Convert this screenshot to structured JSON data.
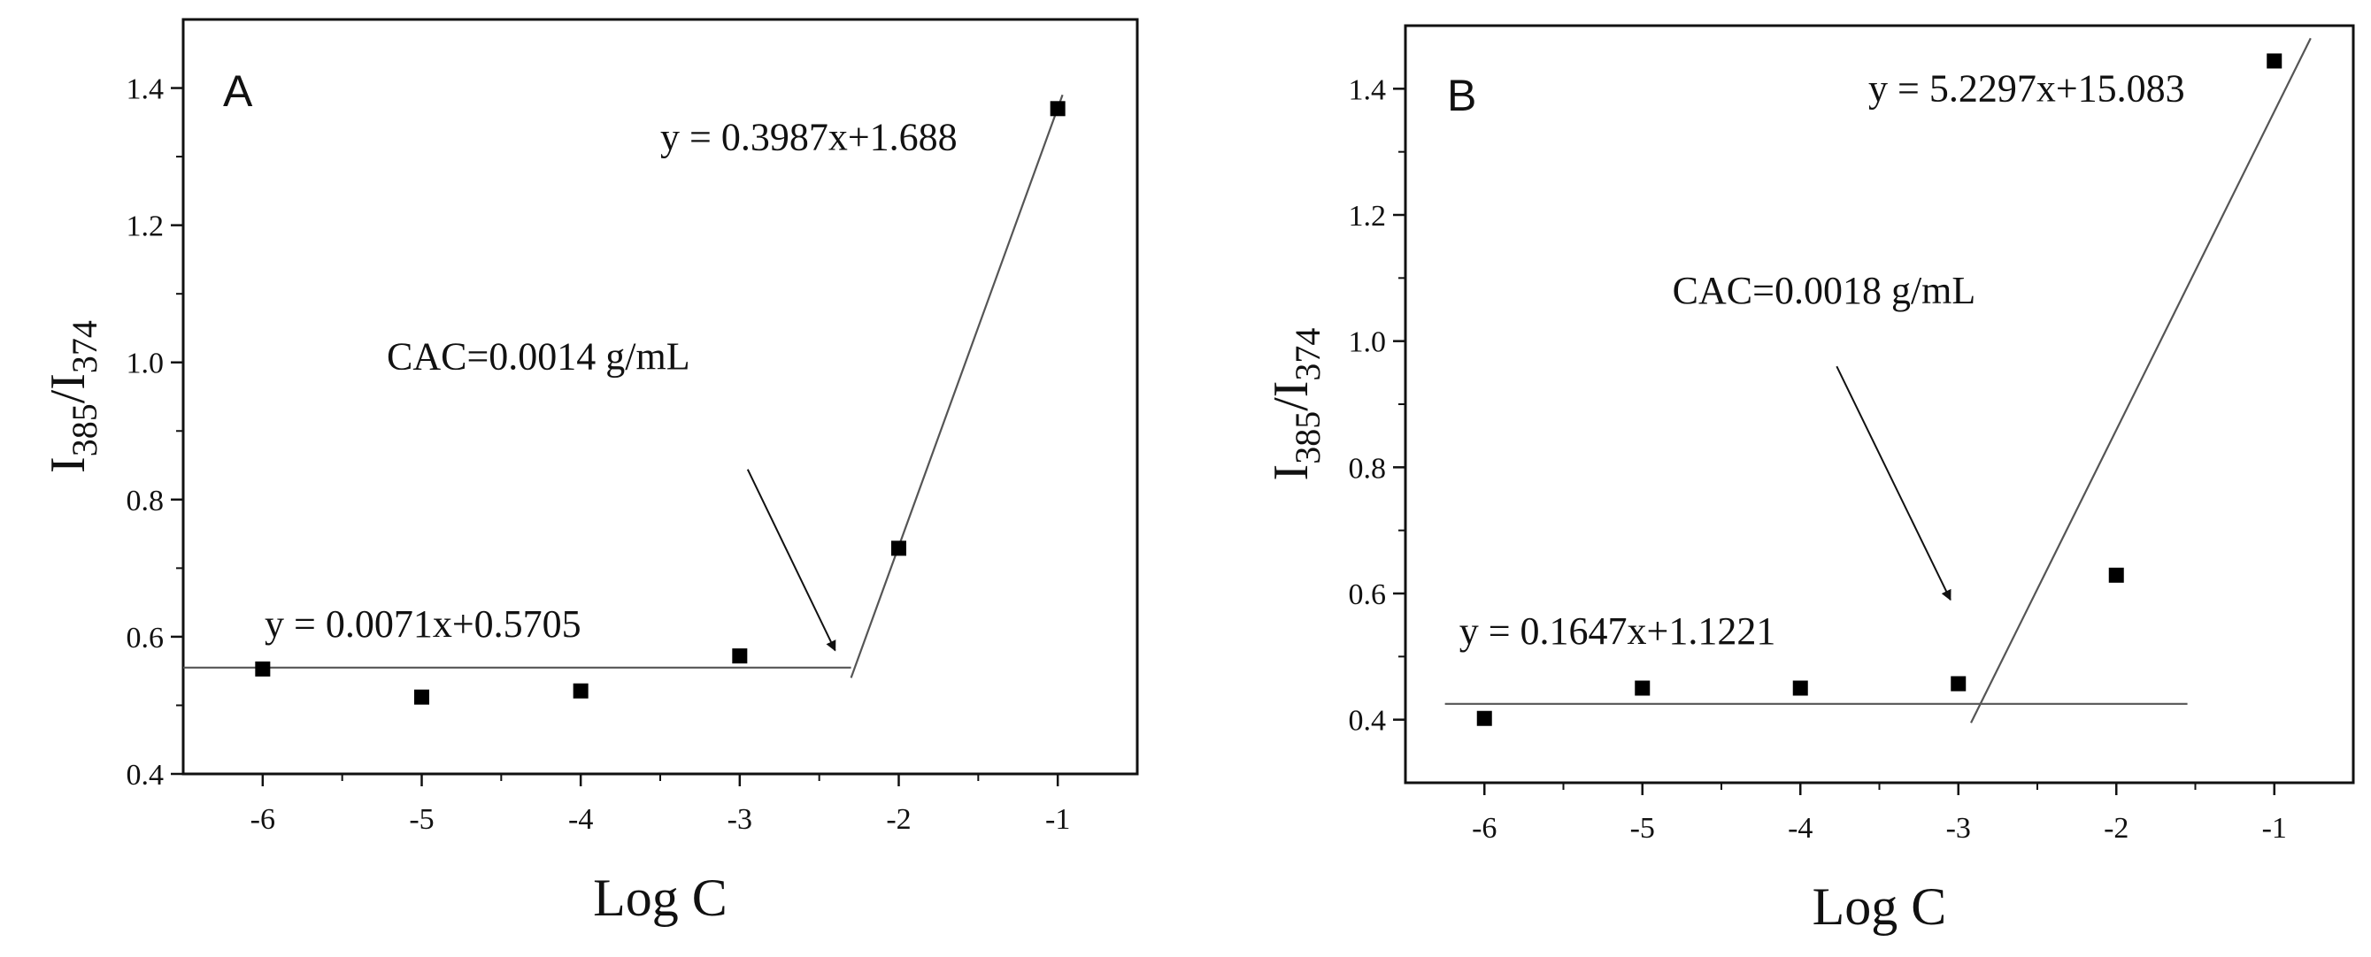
{
  "chart_data": [
    {
      "type": "scatter",
      "panel_label": "A",
      "xlabel": "Log C",
      "ylabel_base": "I",
      "ylabel_sub1": "385",
      "ylabel_slash": "/I",
      "ylabel_sub2": "374",
      "xlim": [
        -6.5,
        -0.5
      ],
      "ylim": [
        0.4,
        1.5
      ],
      "x_ticks": [
        -6,
        -5,
        -4,
        -3,
        -2,
        -1
      ],
      "x_tick_labels": [
        "-6",
        "-5",
        "-4",
        "-3",
        "-2",
        "-1"
      ],
      "y_ticks": [
        0.4,
        0.6,
        0.8,
        1.0,
        1.2,
        1.4
      ],
      "y_tick_labels": [
        "0.4",
        "0.6",
        "0.8",
        "1.0",
        "1.2",
        "1.4"
      ],
      "grid": false,
      "series": [
        {
          "x": [
            -6,
            -5,
            -4,
            -3,
            -2,
            -1
          ],
          "y": [
            0.553,
            0.512,
            0.521,
            0.572,
            0.729,
            1.37
          ]
        }
      ],
      "fit_lines": [
        {
          "equation": "y = 0.0071x+0.5705",
          "x_start": -6.5,
          "x_end": -2.3,
          "y_start": 0.555,
          "y_end": 0.555
        },
        {
          "equation": "y = 0.3987x+1.688",
          "x_start": -2.3,
          "x_end": -0.97,
          "y_start": 0.54,
          "y_end": 1.39
        }
      ],
      "equation_positions": [
        {
          "x": -6.5,
          "y": 0.6
        },
        {
          "x": -3.5,
          "y": 1.31
        }
      ],
      "annotation": {
        "text": "CAC=0.0014 g/mL",
        "x": -5.22,
        "y": 0.99,
        "arrow_from": [
          -2.95,
          0.844
        ],
        "arrow_to": [
          -2.4,
          0.58
        ]
      }
    },
    {
      "type": "scatter",
      "panel_label": "B",
      "xlabel": "Log C",
      "ylabel_base": "I",
      "ylabel_sub1": "385",
      "ylabel_slash": "/I",
      "ylabel_sub2": "374",
      "xlim": [
        -6.5,
        -0.5
      ],
      "ylim": [
        0.3,
        1.5
      ],
      "x_ticks": [
        -6,
        -5,
        -4,
        -3,
        -2,
        -1
      ],
      "x_tick_labels": [
        "-6",
        "-5",
        "-4",
        "-3",
        "-2",
        "-1"
      ],
      "y_ticks": [
        0.4,
        0.6,
        0.8,
        1.0,
        1.2,
        1.4
      ],
      "y_tick_labels": [
        "0.4",
        "0.6",
        "0.8",
        "1.0",
        "1.2",
        "1.4"
      ],
      "grid": false,
      "series": [
        {
          "x": [
            -6,
            -5,
            -4,
            -3,
            -2,
            -1
          ],
          "y": [
            0.402,
            0.45,
            0.45,
            0.457,
            0.629,
            1.444
          ]
        }
      ],
      "fit_lines": [
        {
          "equation": "y = 0.1647x+1.1221",
          "x_start": -6.25,
          "x_end": -1.55,
          "y_start": 0.425,
          "y_end": 0.425
        },
        {
          "equation": "y = 5.2297x+15.083",
          "x_start": -2.92,
          "x_end": -0.77,
          "y_start": 0.395,
          "y_end": 1.48
        }
      ],
      "equation_positions": [
        {
          "x": -6.16,
          "y": 0.52
        },
        {
          "x": -3.57,
          "y": 1.38
        }
      ],
      "annotation": {
        "text": "CAC=0.0018 g/mL",
        "x": -4.81,
        "y": 1.06,
        "arrow_from": [
          -3.77,
          0.96
        ],
        "arrow_to": [
          -3.05,
          0.59
        ]
      }
    }
  ]
}
